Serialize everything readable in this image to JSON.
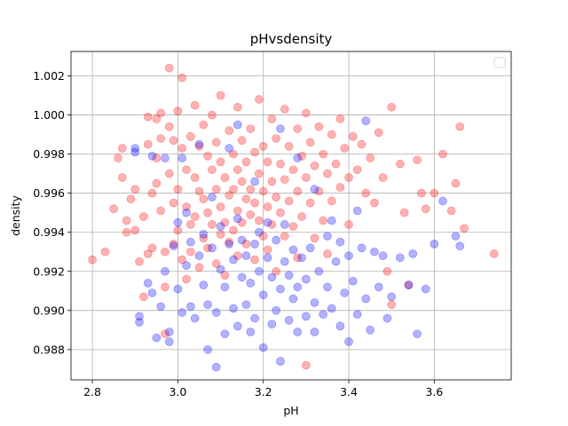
{
  "chart_data": {
    "type": "scatter",
    "title": "pHvsdensity",
    "xlabel": "pH",
    "ylabel": "density",
    "xlim": [
      2.75,
      3.78
    ],
    "ylim": [
      0.98645,
      1.00325
    ],
    "xticks": [
      2.8,
      3.0,
      3.2,
      3.4,
      3.6
    ],
    "xtick_labels": [
      "2.8",
      "3.0",
      "3.2",
      "3.4",
      "3.6"
    ],
    "yticks": [
      0.988,
      0.99,
      0.992,
      0.994,
      0.996,
      0.998,
      1.0,
      1.002
    ],
    "ytick_labels": [
      "0.988",
      "0.990",
      "0.992",
      "0.994",
      "0.996",
      "0.998",
      "1.000",
      "1.002"
    ],
    "grid": true,
    "legend": "top-right, empty box",
    "marker_alpha": 0.3,
    "series": [
      {
        "color": "#ff0000",
        "points": [
          [
            2.8,
            0.9926
          ],
          [
            2.83,
            0.993
          ],
          [
            2.85,
            0.9952
          ],
          [
            2.86,
            0.9978
          ],
          [
            2.87,
            0.9983
          ],
          [
            2.87,
            0.9968
          ],
          [
            2.88,
            0.9946
          ],
          [
            2.88,
            0.994
          ],
          [
            2.89,
            0.9957
          ],
          [
            2.9,
            0.9962
          ],
          [
            2.9,
            0.9941
          ],
          [
            2.91,
            0.9925
          ],
          [
            2.92,
            0.9948
          ],
          [
            2.92,
            0.9907
          ],
          [
            2.93,
            0.9999
          ],
          [
            2.93,
            0.9985
          ],
          [
            2.93,
            0.9929
          ],
          [
            2.94,
            0.996
          ],
          [
            2.94,
            0.9932
          ],
          [
            2.95,
            0.9998
          ],
          [
            2.95,
            0.9978
          ],
          [
            2.95,
            0.9965
          ],
          [
            2.96,
            1.0001
          ],
          [
            2.96,
            0.9988
          ],
          [
            2.96,
            0.9951
          ],
          [
            2.97,
            0.993
          ],
          [
            2.97,
            0.9912
          ],
          [
            2.98,
            1.0024
          ],
          [
            2.98,
            0.9994
          ],
          [
            2.98,
            0.997
          ],
          [
            2.99,
            0.9987
          ],
          [
            2.99,
            0.9955
          ],
          [
            2.99,
            0.9934
          ],
          [
            2.97,
            0.9888
          ],
          [
            3.0,
            1.0002
          ],
          [
            3.0,
            0.9962
          ],
          [
            3.0,
            0.9941
          ],
          [
            3.01,
            1.0019
          ],
          [
            3.01,
            0.9983
          ],
          [
            3.01,
            0.9926
          ],
          [
            3.02,
            0.9972
          ],
          [
            3.02,
            0.9953
          ],
          [
            3.02,
            0.9916
          ],
          [
            3.03,
            0.9989
          ],
          [
            3.03,
            0.9944
          ],
          [
            3.03,
            0.993
          ],
          [
            3.04,
            1.0005
          ],
          [
            3.04,
            0.9968
          ],
          [
            3.04,
            0.9948
          ],
          [
            3.05,
            0.9984
          ],
          [
            3.05,
            0.9961
          ],
          [
            3.05,
            0.9922
          ],
          [
            3.06,
            0.9995
          ],
          [
            3.06,
            0.9957
          ],
          [
            3.06,
            0.9937
          ],
          [
            3.07,
            0.9979
          ],
          [
            3.07,
            0.995
          ],
          [
            3.07,
            0.9932
          ],
          [
            3.08,
            1.0
          ],
          [
            3.08,
            0.9972
          ],
          [
            3.08,
            0.9944
          ],
          [
            3.09,
            0.9986
          ],
          [
            3.09,
            0.9962
          ],
          [
            3.09,
            0.9924
          ],
          [
            3.1,
            1.001
          ],
          [
            3.1,
            0.9976
          ],
          [
            3.1,
            0.9953
          ],
          [
            3.1,
            0.9939
          ],
          [
            3.11,
            0.9968
          ],
          [
            3.11,
            0.9945
          ],
          [
            3.11,
            0.9918
          ],
          [
            3.12,
            0.9992
          ],
          [
            3.12,
            0.9959
          ],
          [
            3.12,
            0.9935
          ],
          [
            3.13,
            0.998
          ],
          [
            3.13,
            0.9962
          ],
          [
            3.13,
            0.9941
          ],
          [
            3.14,
            1.0004
          ],
          [
            3.14,
            0.9972
          ],
          [
            3.14,
            0.9951
          ],
          [
            3.14,
            0.9928
          ],
          [
            3.15,
            0.9987
          ],
          [
            3.15,
            0.9966
          ],
          [
            3.15,
            0.9945
          ],
          [
            3.16,
            0.9976
          ],
          [
            3.16,
            0.9957
          ],
          [
            3.16,
            0.9934
          ],
          [
            3.17,
            0.9993
          ],
          [
            3.17,
            0.9962
          ],
          [
            3.17,
            0.9949
          ],
          [
            3.18,
            0.9981
          ],
          [
            3.18,
            0.9955
          ],
          [
            3.18,
            0.9926
          ],
          [
            3.19,
            1.0008
          ],
          [
            3.19,
            0.997
          ],
          [
            3.19,
            0.9946
          ],
          [
            3.2,
            0.9984
          ],
          [
            3.2,
            0.9961
          ],
          [
            3.2,
            0.9938
          ],
          [
            3.21,
            0.9976
          ],
          [
            3.21,
            0.9953
          ],
          [
            3.21,
            0.9931
          ],
          [
            3.22,
            0.9998
          ],
          [
            3.22,
            0.9966
          ],
          [
            3.22,
            0.9944
          ],
          [
            3.23,
            0.9988
          ],
          [
            3.23,
            0.9958
          ],
          [
            3.23,
            0.992
          ],
          [
            3.24,
            0.9975
          ],
          [
            3.24,
            0.995
          ],
          [
            3.25,
            1.0003
          ],
          [
            3.25,
            0.9967
          ],
          [
            3.25,
            0.9938
          ],
          [
            3.26,
            0.9984
          ],
          [
            3.26,
            0.9956
          ],
          [
            3.27,
            0.9972
          ],
          [
            3.27,
            0.9943
          ],
          [
            3.28,
            0.9993
          ],
          [
            3.28,
            0.9961
          ],
          [
            3.28,
            0.9927
          ],
          [
            3.29,
            0.9979
          ],
          [
            3.29,
            0.9948
          ],
          [
            3.3,
            1.0001
          ],
          [
            3.3,
            0.9968
          ],
          [
            3.3,
            0.9872
          ],
          [
            3.31,
            0.9986
          ],
          [
            3.31,
            0.9955
          ],
          [
            3.32,
            0.9974
          ],
          [
            3.32,
            0.9937
          ],
          [
            3.33,
            0.9994
          ],
          [
            3.33,
            0.9961
          ],
          [
            3.34,
            0.998
          ],
          [
            3.34,
            0.9946
          ],
          [
            3.35,
            0.997
          ],
          [
            3.35,
            0.9929
          ],
          [
            3.36,
            0.999
          ],
          [
            3.36,
            0.9956
          ],
          [
            3.37,
            0.9975
          ],
          [
            3.38,
            0.9998
          ],
          [
            3.38,
            0.9963
          ],
          [
            3.39,
            0.9983
          ],
          [
            3.4,
            0.9968
          ],
          [
            3.4,
            0.9944
          ],
          [
            3.41,
            0.9989
          ],
          [
            3.42,
            0.9972
          ],
          [
            3.43,
            0.9985
          ],
          [
            3.44,
            0.996
          ],
          [
            3.45,
            0.9978
          ],
          [
            3.46,
            0.9955
          ],
          [
            3.47,
            0.9991
          ],
          [
            3.48,
            0.9968
          ],
          [
            3.49,
            0.992
          ],
          [
            3.5,
            1.0004
          ],
          [
            3.5,
            0.9903
          ],
          [
            3.52,
            0.9975
          ],
          [
            3.53,
            0.995
          ],
          [
            3.54,
            0.9913
          ],
          [
            3.56,
            0.9977
          ],
          [
            3.57,
            0.996
          ],
          [
            3.58,
            0.9952
          ],
          [
            3.6,
            0.996
          ],
          [
            3.62,
            0.998
          ],
          [
            3.64,
            0.9951
          ],
          [
            3.65,
            0.9965
          ],
          [
            3.66,
            0.9994
          ],
          [
            3.67,
            0.9942
          ],
          [
            3.74,
            0.9929
          ]
        ]
      },
      {
        "color": "#0000ff",
        "points": [
          [
            2.9,
            0.9983
          ],
          [
            2.9,
            0.9981
          ],
          [
            2.91,
            0.9897
          ],
          [
            2.91,
            0.9894
          ],
          [
            2.93,
            0.9914
          ],
          [
            2.94,
            0.9909
          ],
          [
            2.94,
            0.9979
          ],
          [
            2.95,
            0.9886
          ],
          [
            2.96,
            0.9902
          ],
          [
            2.97,
            0.992
          ],
          [
            2.97,
            0.9978
          ],
          [
            2.98,
            0.9884
          ],
          [
            2.98,
            0.9889
          ],
          [
            2.99,
            0.9933
          ],
          [
            3.0,
            0.9945
          ],
          [
            3.0,
            0.9911
          ],
          [
            3.01,
            0.9899
          ],
          [
            3.01,
            0.9978
          ],
          [
            3.02,
            0.9923
          ],
          [
            3.02,
            0.995
          ],
          [
            3.03,
            0.9902
          ],
          [
            3.03,
            0.9935
          ],
          [
            3.04,
            0.9896
          ],
          [
            3.05,
            0.9928
          ],
          [
            3.05,
            0.9985
          ],
          [
            3.06,
            0.9913
          ],
          [
            3.06,
            0.9939
          ],
          [
            3.07,
            0.988
          ],
          [
            3.07,
            0.9903
          ],
          [
            3.08,
            0.9932
          ],
          [
            3.08,
            0.9958
          ],
          [
            3.09,
            0.9871
          ],
          [
            3.09,
            0.9899
          ],
          [
            3.1,
            0.9921
          ],
          [
            3.1,
            0.9943
          ],
          [
            3.11,
            0.9888
          ],
          [
            3.11,
            0.9912
          ],
          [
            3.12,
            0.9934
          ],
          [
            3.12,
            0.9983
          ],
          [
            3.13,
            0.9901
          ],
          [
            3.13,
            0.9926
          ],
          [
            3.14,
            0.9947
          ],
          [
            3.14,
            0.9892
          ],
          [
            3.15,
            0.9917
          ],
          [
            3.15,
            0.9936
          ],
          [
            3.16,
            0.9903
          ],
          [
            3.16,
            0.9928
          ],
          [
            3.17,
            0.9889
          ],
          [
            3.17,
            0.9914
          ],
          [
            3.18,
            0.9934
          ],
          [
            3.18,
            0.9896
          ],
          [
            3.19,
            0.992
          ],
          [
            3.19,
            0.994
          ],
          [
            3.2,
            0.9881
          ],
          [
            3.2,
            0.9908
          ],
          [
            3.21,
            0.9927
          ],
          [
            3.21,
            0.9945
          ],
          [
            3.22,
            0.9893
          ],
          [
            3.22,
            0.9917
          ],
          [
            3.23,
            0.99
          ],
          [
            3.23,
            0.9936
          ],
          [
            3.24,
            0.9874
          ],
          [
            3.24,
            0.9911
          ],
          [
            3.25,
            0.9925
          ],
          [
            3.25,
            0.9944
          ],
          [
            3.26,
            0.9895
          ],
          [
            3.26,
            0.9918
          ],
          [
            3.27,
            0.9906
          ],
          [
            3.27,
            0.9931
          ],
          [
            3.28,
            0.9889
          ],
          [
            3.28,
            0.9912
          ],
          [
            3.29,
            0.9927
          ],
          [
            3.3,
            0.9897
          ],
          [
            3.3,
            0.9916
          ],
          [
            3.31,
            0.9932
          ],
          [
            3.32,
            0.9904
          ],
          [
            3.32,
            0.9889
          ],
          [
            3.33,
            0.992
          ],
          [
            3.34,
            0.9898
          ],
          [
            3.35,
            0.9912
          ],
          [
            3.35,
            0.9938
          ],
          [
            3.36,
            0.9901
          ],
          [
            3.37,
            0.9925
          ],
          [
            3.38,
            0.9892
          ],
          [
            3.38,
            0.9935
          ],
          [
            3.39,
            0.9909
          ],
          [
            3.4,
            0.9884
          ],
          [
            3.4,
            0.9928
          ],
          [
            3.41,
            0.9915
          ],
          [
            3.42,
            0.9898
          ],
          [
            3.43,
            0.9932
          ],
          [
            3.44,
            0.9906
          ],
          [
            3.45,
            0.989
          ],
          [
            3.46,
            0.993
          ],
          [
            3.47,
            0.9912
          ],
          [
            3.48,
            0.9928
          ],
          [
            3.49,
            0.9896
          ],
          [
            3.5,
            0.9907
          ],
          [
            3.52,
            0.9927
          ],
          [
            3.54,
            0.9913
          ],
          [
            3.55,
            0.9929
          ],
          [
            3.56,
            0.9888
          ],
          [
            3.58,
            0.9911
          ],
          [
            3.6,
            0.9934
          ],
          [
            3.62,
            0.9956
          ],
          [
            3.65,
            0.9938
          ],
          [
            3.66,
            0.9933
          ],
          [
            3.32,
            0.9962
          ],
          [
            3.44,
            0.9997
          ],
          [
            3.42,
            0.9951
          ],
          [
            3.36,
            0.9946
          ],
          [
            3.28,
            0.9978
          ],
          [
            3.18,
            0.9966
          ],
          [
            3.24,
            0.9993
          ],
          [
            3.14,
            0.9995
          ]
        ]
      }
    ]
  }
}
